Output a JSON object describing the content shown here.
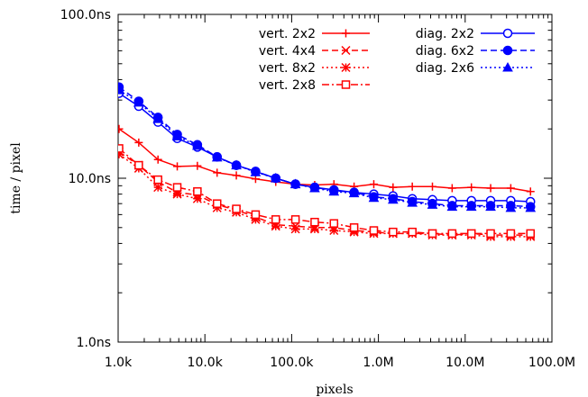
{
  "chart_data": {
    "type": "line",
    "title": "",
    "xlabel": "pixels",
    "ylabel": "time / pixel",
    "x_scale": "log",
    "y_scale": "log",
    "xlim": [
      1000,
      100000000
    ],
    "ylim": [
      1,
      100
    ],
    "x_ticks": [
      {
        "value": 1000,
        "label": "1.0k"
      },
      {
        "value": 10000,
        "label": "10.0k"
      },
      {
        "value": 100000,
        "label": "100.0k"
      },
      {
        "value": 1000000,
        "label": "1.0M"
      },
      {
        "value": 10000000,
        "label": "10.0M"
      },
      {
        "value": 100000000,
        "label": "100.0M"
      }
    ],
    "y_ticks": [
      {
        "value": 1,
        "label": "1.0ns"
      },
      {
        "value": 10,
        "label": "10.0ns"
      },
      {
        "value": 100,
        "label": "100.0ns"
      }
    ],
    "grid": false,
    "legend_position": "top-right",
    "x": [
      1024,
      1728,
      2880,
      4800,
      8192,
      13824,
      23040,
      38400,
      65536,
      110592,
      184320,
      307200,
      524288,
      884736,
      1474560,
      2457600,
      4194304,
      7077888,
      11796480,
      19660800,
      33554432,
      56623104
    ],
    "series": [
      {
        "name": "vert. 2x2",
        "color": "#ff0000",
        "dash": "solid",
        "marker": "plus",
        "values": [
          20.0,
          16.5,
          13.0,
          11.8,
          11.9,
          10.8,
          10.4,
          9.9,
          9.5,
          9.2,
          9.1,
          9.2,
          8.9,
          9.2,
          8.8,
          8.9,
          8.9,
          8.7,
          8.8,
          8.7,
          8.7,
          8.3
        ]
      },
      {
        "name": "vert. 4x4",
        "color": "#ff0000",
        "dash": "dashed",
        "marker": "cross",
        "values": [
          14.5,
          12.0,
          9.5,
          8.2,
          7.9,
          6.9,
          6.4,
          5.8,
          5.2,
          5.1,
          5.0,
          5.0,
          4.8,
          4.7,
          4.6,
          4.6,
          4.6,
          4.5,
          4.6,
          4.5,
          4.5,
          4.5
        ]
      },
      {
        "name": "vert. 8x2",
        "color": "#ff0000",
        "dash": "dotted",
        "marker": "star",
        "values": [
          14.0,
          11.5,
          8.8,
          8.0,
          7.5,
          6.6,
          6.2,
          5.6,
          5.1,
          4.9,
          4.9,
          4.8,
          4.7,
          4.6,
          4.6,
          4.6,
          4.5,
          4.5,
          4.5,
          4.4,
          4.4,
          4.4
        ]
      },
      {
        "name": "vert. 2x8",
        "color": "#ff0000",
        "dash": "dashdot",
        "marker": "open-square",
        "values": [
          15.2,
          12.0,
          9.8,
          8.8,
          8.3,
          7.0,
          6.5,
          6.0,
          5.6,
          5.6,
          5.4,
          5.3,
          5.0,
          4.8,
          4.7,
          4.7,
          4.6,
          4.6,
          4.6,
          4.6,
          4.6,
          4.6
        ]
      },
      {
        "name": "diag. 2x2",
        "color": "#0000ff",
        "dash": "solid",
        "marker": "open-circle",
        "values": [
          33.0,
          27.5,
          22.0,
          17.5,
          15.5,
          13.5,
          12.0,
          11.0,
          10.0,
          9.2,
          8.8,
          8.5,
          8.2,
          8.0,
          7.8,
          7.5,
          7.4,
          7.3,
          7.3,
          7.3,
          7.3,
          7.2
        ]
      },
      {
        "name": "diag. 6x2",
        "color": "#0000ff",
        "dash": "dashed",
        "marker": "filled-circle",
        "values": [
          36.0,
          29.5,
          23.5,
          18.5,
          16.0,
          13.5,
          12.0,
          11.0,
          10.0,
          9.2,
          8.8,
          8.4,
          8.2,
          7.7,
          7.5,
          7.2,
          7.0,
          6.8,
          6.8,
          6.8,
          6.8,
          6.7
        ]
      },
      {
        "name": "diag. 2x6",
        "color": "#0000ff",
        "dash": "dotted",
        "marker": "filled-triangle",
        "values": [
          34.5,
          29.0,
          23.0,
          18.0,
          15.8,
          13.4,
          12.0,
          10.9,
          10.0,
          9.2,
          8.7,
          8.3,
          8.1,
          7.6,
          7.4,
          7.1,
          6.9,
          6.7,
          6.7,
          6.7,
          6.6,
          6.6
        ]
      }
    ]
  }
}
